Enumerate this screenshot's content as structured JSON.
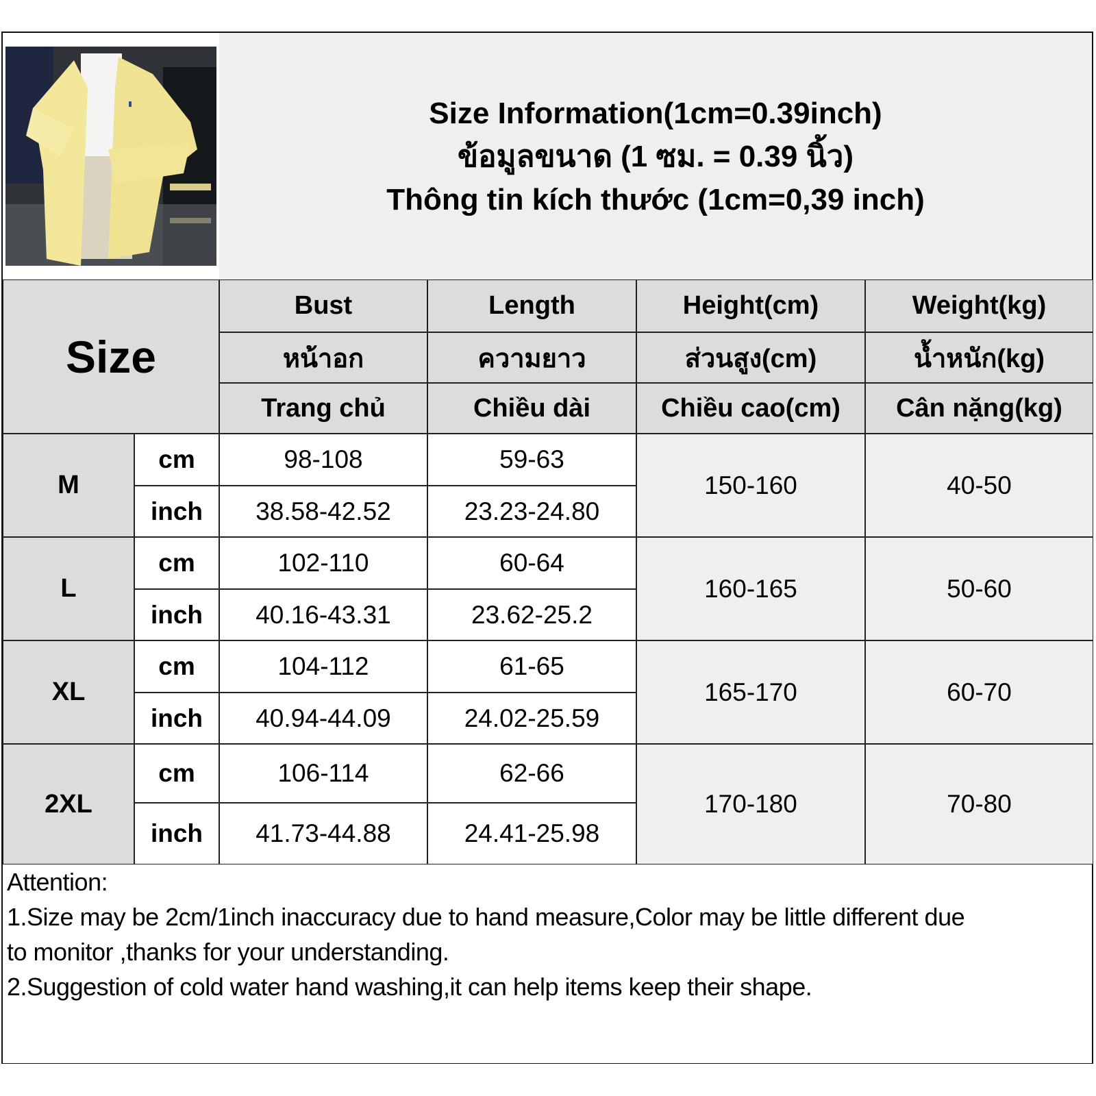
{
  "title": {
    "line1": "Size Information(1cm=0.39inch)",
    "line2": "ข้อมูลขนาด (1 ซม. = 0.39 นิ้ว)",
    "line3": "Thông tin kích thước (1cm=0,39 inch)"
  },
  "size_label": "Size",
  "headers": [
    {
      "en": "Bust",
      "th": "หน้าอก",
      "vi": "Trang chủ"
    },
    {
      "en": "Length",
      "th": "ความยาว",
      "vi": "Chiều dài"
    },
    {
      "en": "Height(cm)",
      "th": "ส่วนสูง(cm)",
      "vi": "Chiều cao(cm)"
    },
    {
      "en": "Weight(kg)",
      "th": "น้ำหนัก(kg)",
      "vi": "Cân nặng(kg)"
    }
  ],
  "units": {
    "cm": "cm",
    "inch": "inch"
  },
  "rows": [
    {
      "size": "M",
      "bust_cm": "98-108",
      "length_cm": "59-63",
      "bust_inch": "38.58-42.52",
      "length_inch": "23.23-24.80",
      "height": "150-160",
      "weight": "40-50"
    },
    {
      "size": "L",
      "bust_cm": "102-110",
      "length_cm": "60-64",
      "bust_inch": "40.16-43.31",
      "length_inch": "23.62-25.2",
      "height": "160-165",
      "weight": "50-60"
    },
    {
      "size": "XL",
      "bust_cm": "104-112",
      "length_cm": "61-65",
      "bust_inch": "40.94-44.09",
      "length_inch": "24.02-25.59",
      "height": "165-170",
      "weight": "60-70"
    },
    {
      "size": "2XL",
      "bust_cm": "106-114",
      "length_cm": "62-66",
      "bust_inch": "41.73-44.88",
      "length_inch": "24.41-25.98",
      "height": "170-180",
      "weight": "70-80"
    }
  ],
  "attention": {
    "heading": "Attention:",
    "line1": "1.Size may be 2cm/1inch inaccuracy due to hand measure,Color may be little different due",
    "line2": "to monitor ,thanks for your understanding.",
    "line3": "2.Suggestion of cold water hand washing,it can help items keep their shape."
  },
  "colors": {
    "header_bg": "#dcdcdc",
    "light_bg": "#efefef",
    "hoodie": "#f3e79a"
  }
}
